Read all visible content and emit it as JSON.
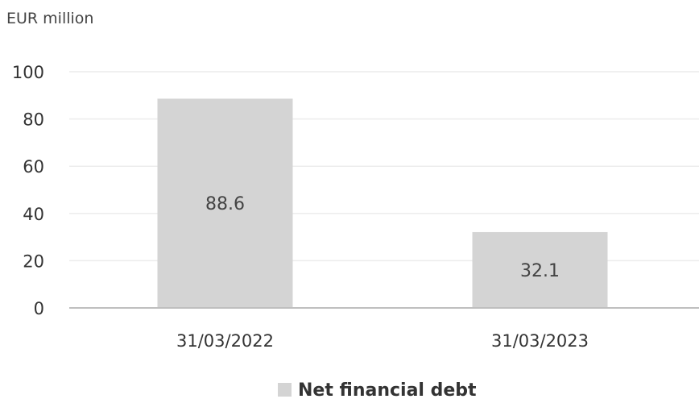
{
  "chart_data": {
    "type": "bar",
    "ylabel": "EUR million",
    "categories": [
      "31/03/2022",
      "31/03/2023"
    ],
    "series": [
      {
        "name": "Net financial debt",
        "values": [
          88.6,
          32.1
        ]
      }
    ],
    "data_labels": [
      "88.6",
      "32.1"
    ],
    "yticks": [
      0,
      20,
      40,
      60,
      80,
      100
    ],
    "ylim": [
      0,
      100
    ],
    "grid": true,
    "legend": "bottom",
    "colors": {
      "bar": "#d4d4d4",
      "grid": "#ececec",
      "axis": "#bfbfbf"
    }
  }
}
